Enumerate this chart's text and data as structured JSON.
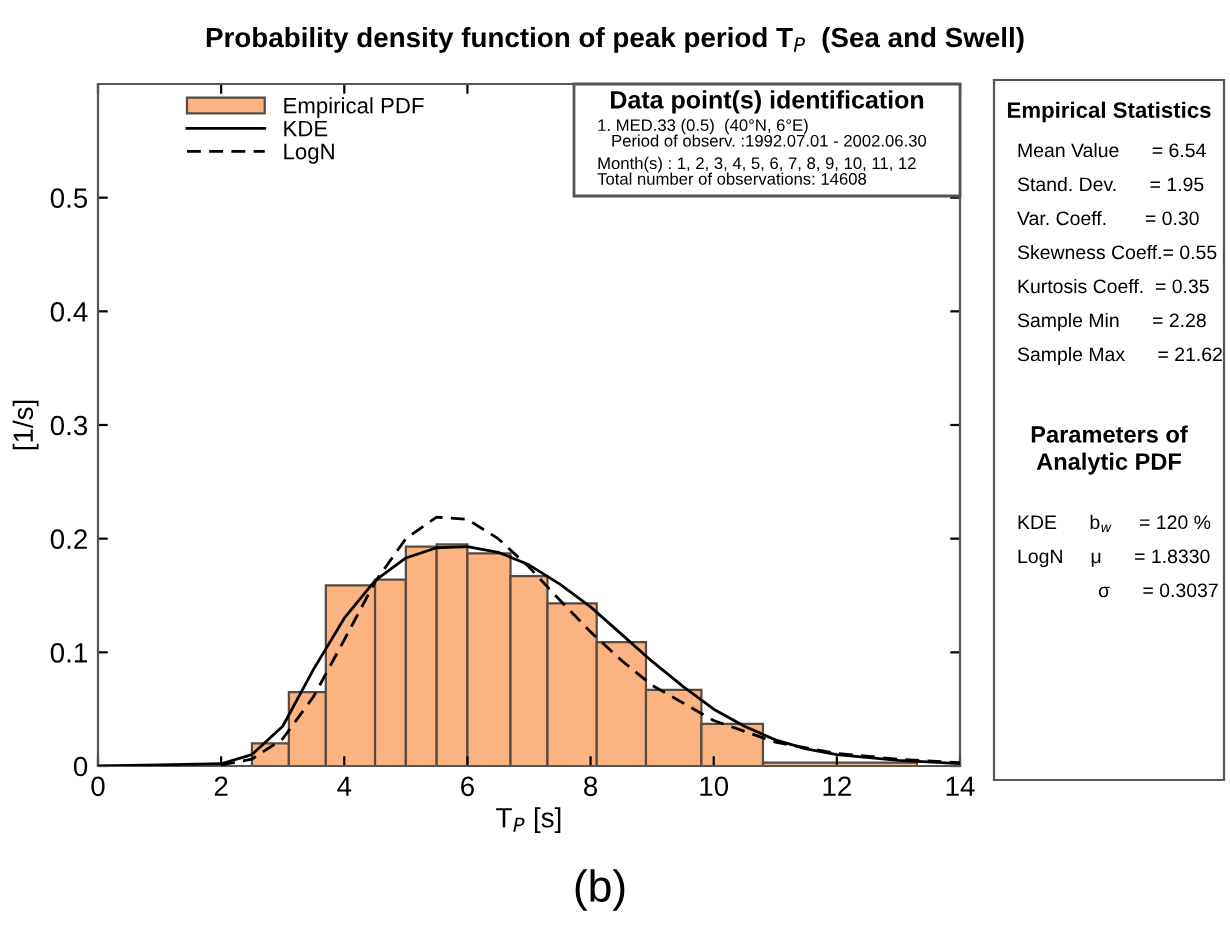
{
  "chart_data": {
    "type": "histogram",
    "title": "Probability density function of peak period T$_{P}$  (Sea and Swell)",
    "xlabel": "T$_{P}$ [s]",
    "ylabel": "[1/s]",
    "bins": [
      2.5,
      3.1,
      3.7,
      4.5,
      5.0,
      5.5,
      6.0,
      6.7,
      7.3,
      8.1,
      8.9,
      9.8,
      10.8,
      13.3
    ],
    "series": [
      {
        "name": "Empirical PDF",
        "color": "#fcb382",
        "values": [
          0.02,
          0.065,
          0.159,
          0.164,
          0.193,
          0.195,
          0.187,
          0.167,
          0.143,
          0.109,
          0.067,
          0.037,
          0.003
        ]
      },
      {
        "type": "line",
        "name": "KDE",
        "color": "#000000",
        "line_style": "solid",
        "x": [
          0,
          1,
          2,
          2.5,
          3,
          3.5,
          4,
          4.5,
          5,
          5.5,
          6,
          6.5,
          7,
          7.5,
          8,
          8.5,
          9,
          9.5,
          10,
          10.5,
          11,
          11.5,
          12,
          13,
          14
        ],
        "values": [
          0,
          0.001,
          0.002,
          0.01,
          0.035,
          0.085,
          0.13,
          0.163,
          0.183,
          0.192,
          0.193,
          0.188,
          0.177,
          0.16,
          0.14,
          0.116,
          0.092,
          0.07,
          0.05,
          0.035,
          0.023,
          0.015,
          0.01,
          0.005,
          0.002
        ]
      },
      {
        "type": "line",
        "name": "LogN",
        "color": "#000000",
        "line_style": "dashed",
        "x": [
          2,
          2.5,
          3,
          3.5,
          4,
          4.5,
          5,
          5.5,
          6,
          6.5,
          7,
          7.5,
          8,
          8.5,
          9,
          10,
          11,
          12,
          13,
          14
        ],
        "values": [
          0.001,
          0.006,
          0.024,
          0.061,
          0.111,
          0.162,
          0.2,
          0.219,
          0.217,
          0.2,
          0.175,
          0.146,
          0.118,
          0.093,
          0.071,
          0.04,
          0.021,
          0.011,
          0.006,
          0.003
        ]
      }
    ],
    "xlim": [
      0,
      14
    ],
    "xticks": [
      0,
      2,
      4,
      6,
      8,
      10,
      12,
      14
    ],
    "ylim": [
      0,
      0.6
    ],
    "yticks": [
      0,
      0.1,
      0.2,
      0.3,
      0.4,
      0.5
    ],
    "legend": "top left",
    "grid": false,
    "annotations": [
      "Data point(s) identification",
      "1. MED.33 (0.5)  (40°N, 6°E)",
      "   Period of observ. :1992.07.01 - 2002.06.30",
      "Month(s) : 1, 2, 3, 4, 5, 6, 7, 8, 9, 10, 11, 12",
      "Total number of observations: 14608",
      "Empirical Statistics",
      "Mean Value      = 6.54",
      "Stand. Dev.      = 1.95",
      "Var. Coeff.       = 0.30",
      "Skewness Coeff.= 0.55",
      "Kurtosis Coeff.  = 0.35",
      "Sample Min      = 2.28",
      "Sample Max      = 21.62",
      "Parameters of\nAnalytic PDF",
      "KDE      b$_{w}$     = 120 %",
      "LogN     μ      = 1.8330",
      "               σ      = 0.3037",
      "(b)"
    ]
  }
}
